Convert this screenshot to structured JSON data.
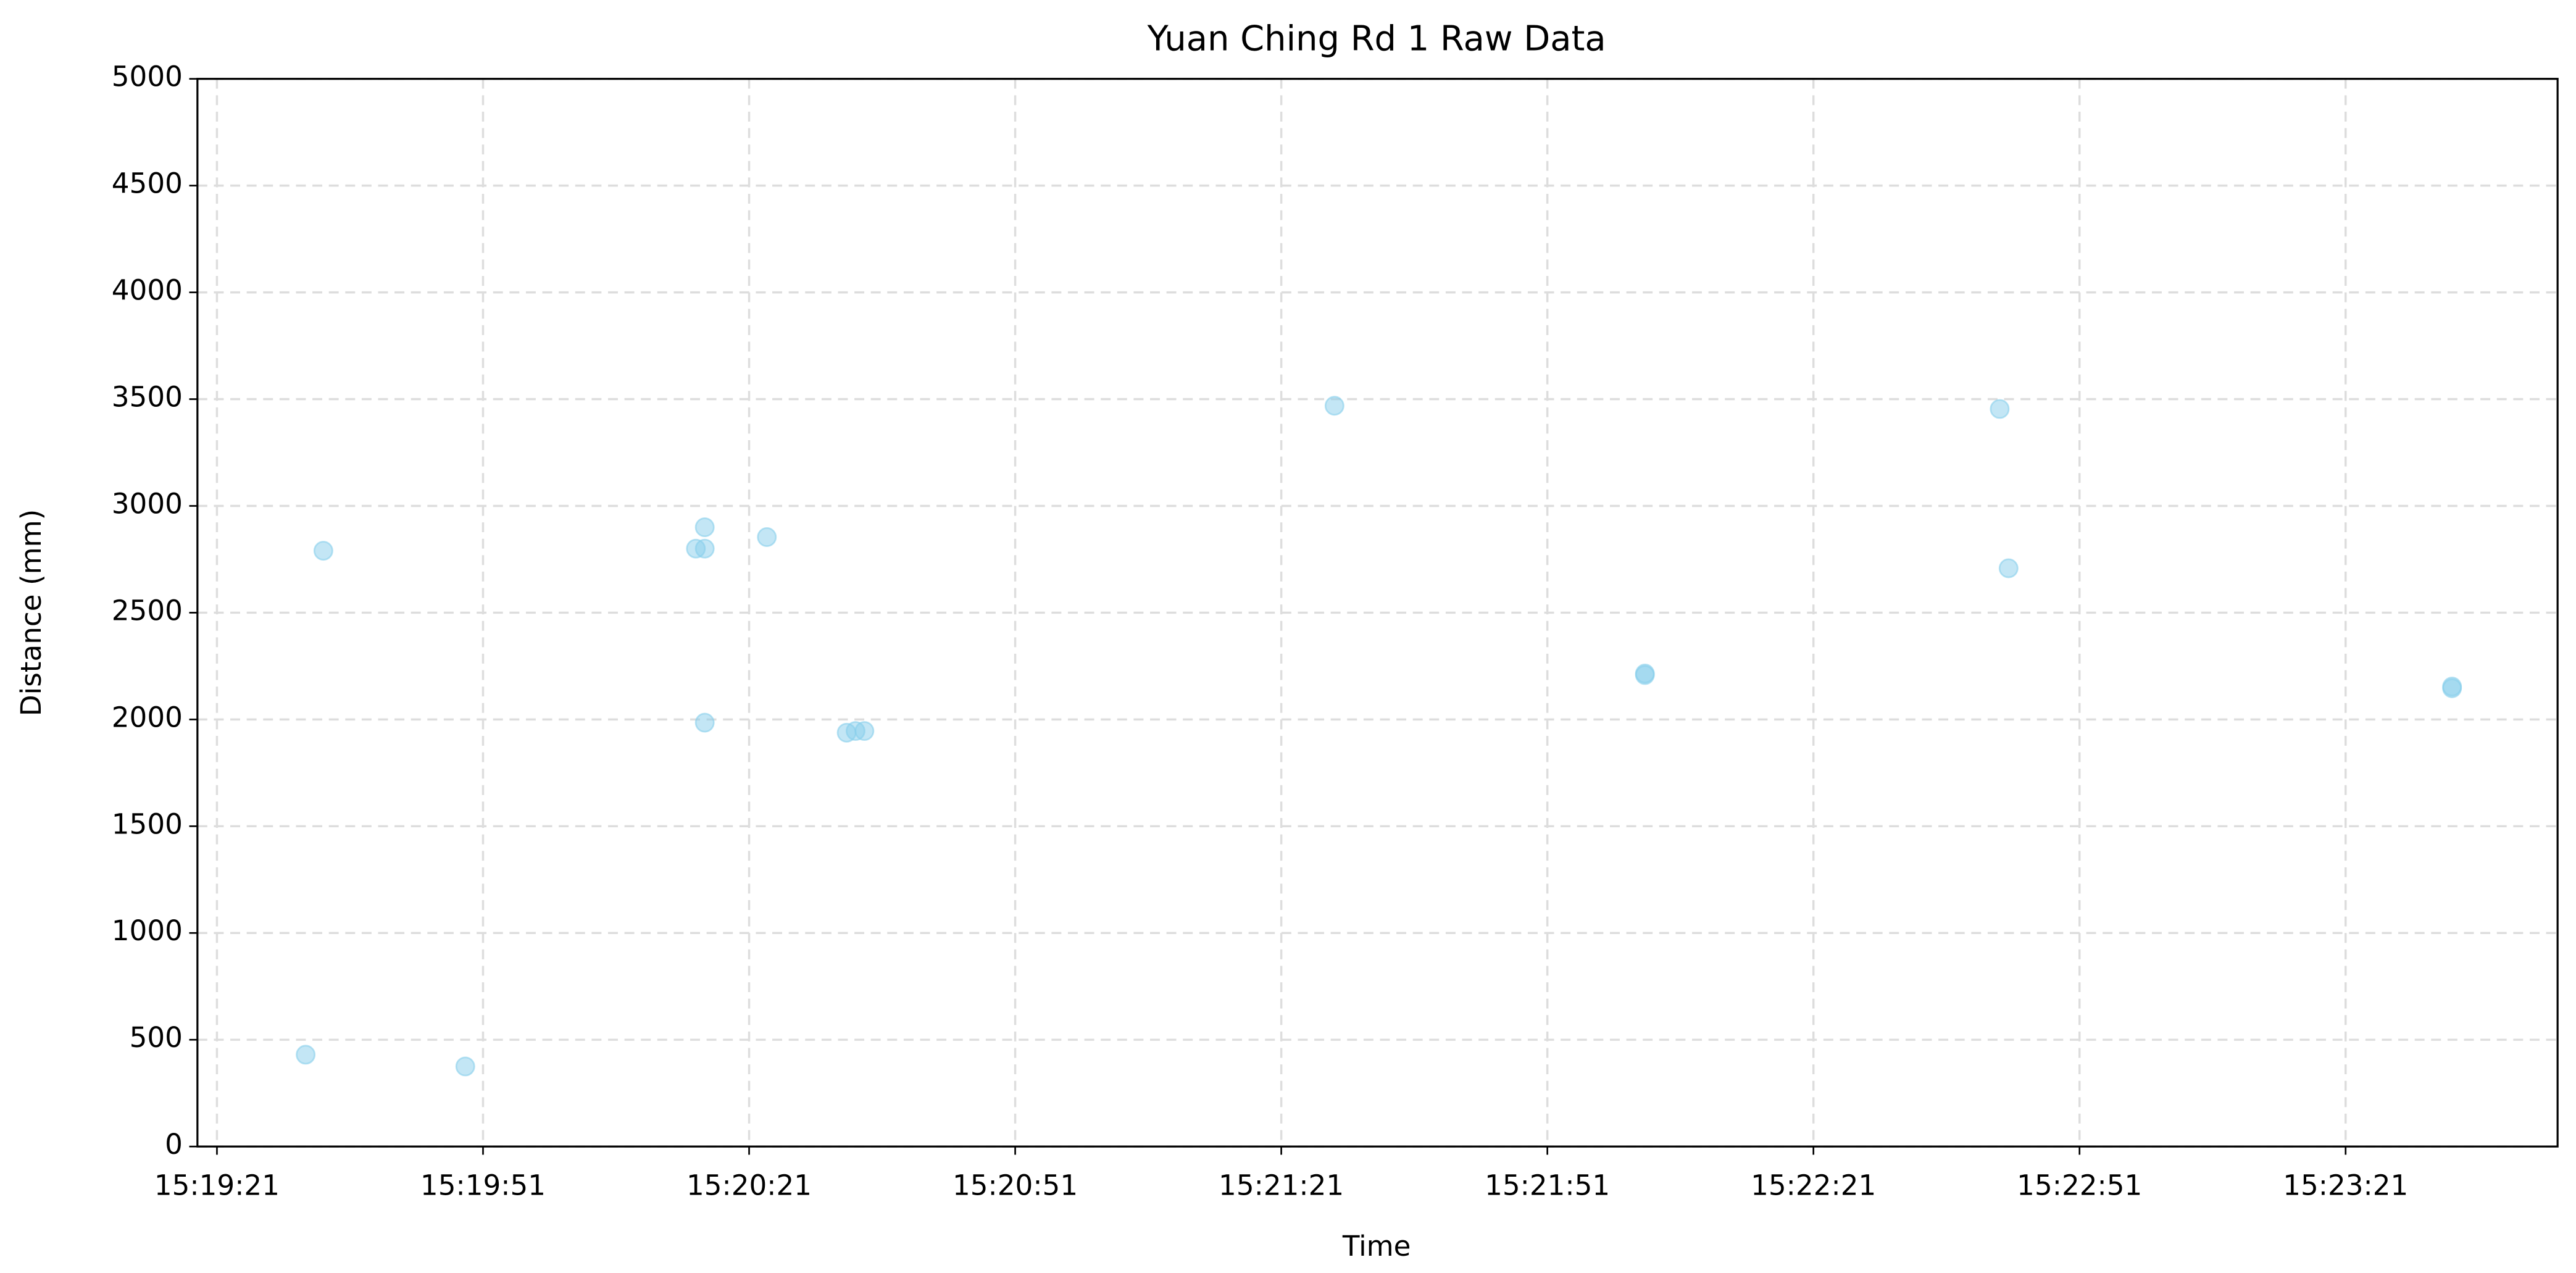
{
  "chart_data": {
    "type": "scatter",
    "title": "Yuan Ching Rd 1 Raw Data",
    "x_label": "Time",
    "y_label": "Distance (mm)",
    "x": [
      "15:19:31",
      "15:19:33",
      "15:19:49",
      "15:20:15",
      "15:20:16",
      "15:20:16",
      "15:20:16",
      "15:20:23",
      "15:20:32",
      "15:20:33",
      "15:20:34",
      "15:21:27",
      "15:22:02",
      "15:22:02",
      "15:22:42",
      "15:22:43",
      "15:23:33",
      "15:23:33"
    ],
    "series": [
      {
        "color": "#87ceeb",
        "values": [
          430,
          2790,
          375,
          2800,
          2900,
          2800,
          1985,
          2854,
          1938,
          1946,
          1946,
          3469,
          2215,
          2208,
          3454,
          2708,
          2146,
          2154
        ]
      }
    ],
    "xlim": [
      "15:19:18.8",
      "15:23:44.9"
    ],
    "xticks": [
      "15:19:21",
      "15:19:51",
      "15:20:21",
      "15:20:51",
      "15:21:21",
      "15:21:51",
      "15:22:21",
      "15:22:51",
      "15:23:21"
    ],
    "ylim": [
      0,
      5000
    ],
    "yticks": [
      0,
      500,
      1000,
      1500,
      2000,
      2500,
      3000,
      3500,
      4000,
      4500,
      5000
    ],
    "grid": true
  }
}
